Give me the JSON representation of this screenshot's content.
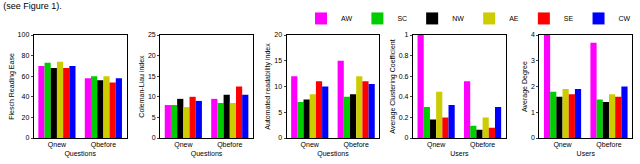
{
  "caption": "(see Figure 1).",
  "chart_data": [
    {
      "type": "bar",
      "y_label": "Flesch Reading Ease",
      "x_label": "Questions",
      "categories": [
        "Qnew",
        "Qbefore"
      ],
      "series": [
        {
          "name": "AW",
          "color": "#ff00ff",
          "values": [
            70,
            58
          ]
        },
        {
          "name": "SC",
          "color": "#00cc00",
          "values": [
            73,
            60
          ]
        },
        {
          "name": "NW",
          "color": "#000000",
          "values": [
            68,
            56
          ]
        },
        {
          "name": "AE",
          "color": "#cccc00",
          "values": [
            74,
            60
          ]
        },
        {
          "name": "SE",
          "color": "#ff0000",
          "values": [
            68,
            54
          ]
        },
        {
          "name": "CW",
          "color": "#0000ff",
          "values": [
            70,
            58
          ]
        }
      ],
      "ylim": [
        0,
        100
      ],
      "yticks": [
        0,
        20,
        40,
        60,
        80,
        100
      ],
      "grid": false
    },
    {
      "type": "bar",
      "y_label": "Coleman-Liau index",
      "x_label": "Questions",
      "categories": [
        "Qnew",
        "Qbefore"
      ],
      "series": [
        {
          "name": "AW",
          "color": "#ff00ff",
          "values": [
            8,
            9.5
          ]
        },
        {
          "name": "SC",
          "color": "#00cc00",
          "values": [
            8,
            8.5
          ]
        },
        {
          "name": "NW",
          "color": "#000000",
          "values": [
            9.5,
            10.5
          ]
        },
        {
          "name": "AE",
          "color": "#cccc00",
          "values": [
            7.5,
            8.5
          ]
        },
        {
          "name": "SE",
          "color": "#ff0000",
          "values": [
            10,
            12.5
          ]
        },
        {
          "name": "CW",
          "color": "#0000ff",
          "values": [
            9,
            10.5
          ]
        }
      ],
      "ylim": [
        0,
        25
      ],
      "yticks": [
        0,
        5,
        10,
        15,
        20,
        25
      ],
      "grid": false
    },
    {
      "type": "bar",
      "y_label": "Automated readability index",
      "x_label": "Questions",
      "categories": [
        "Qnew",
        "Qbefore"
      ],
      "series": [
        {
          "name": "AW",
          "color": "#ff00ff",
          "values": [
            12,
            15
          ]
        },
        {
          "name": "SC",
          "color": "#00cc00",
          "values": [
            7,
            8
          ]
        },
        {
          "name": "NW",
          "color": "#000000",
          "values": [
            7.5,
            8.5
          ]
        },
        {
          "name": "AE",
          "color": "#cccc00",
          "values": [
            8.5,
            12
          ]
        },
        {
          "name": "SE",
          "color": "#ff0000",
          "values": [
            11,
            11
          ]
        },
        {
          "name": "CW",
          "color": "#0000ff",
          "values": [
            10,
            10.5
          ]
        }
      ],
      "ylim": [
        0,
        20
      ],
      "yticks": [
        0,
        5,
        10,
        15,
        20
      ],
      "grid": false
    },
    {
      "type": "bar",
      "y_label": "Average Clustering Coefficient",
      "x_label": "Users",
      "categories": [
        "Qnew",
        "Qbefore"
      ],
      "series": [
        {
          "name": "AW",
          "color": "#ff00ff",
          "values": [
            1.0,
            0.55
          ]
        },
        {
          "name": "SC",
          "color": "#00cc00",
          "values": [
            0.3,
            0.12
          ]
        },
        {
          "name": "NW",
          "color": "#000000",
          "values": [
            0.18,
            0.08
          ]
        },
        {
          "name": "AE",
          "color": "#cccc00",
          "values": [
            0.45,
            0.2
          ]
        },
        {
          "name": "SE",
          "color": "#ff0000",
          "values": [
            0.2,
            0.1
          ]
        },
        {
          "name": "CW",
          "color": "#0000ff",
          "values": [
            0.32,
            0.3
          ]
        }
      ],
      "ylim": [
        0,
        1
      ],
      "yticks": [
        0,
        0.2,
        0.4,
        0.6,
        0.8,
        1
      ],
      "grid": false
    },
    {
      "type": "bar",
      "y_label": "Average Degree",
      "x_label": "Users",
      "categories": [
        "Qnew",
        "Qbefore"
      ],
      "series": [
        {
          "name": "AW",
          "color": "#ff00ff",
          "values": [
            4.0,
            3.7
          ]
        },
        {
          "name": "SC",
          "color": "#00cc00",
          "values": [
            1.8,
            1.5
          ]
        },
        {
          "name": "NW",
          "color": "#000000",
          "values": [
            1.6,
            1.4
          ]
        },
        {
          "name": "AE",
          "color": "#cccc00",
          "values": [
            1.9,
            1.7
          ]
        },
        {
          "name": "SE",
          "color": "#ff0000",
          "values": [
            1.7,
            1.6
          ]
        },
        {
          "name": "CW",
          "color": "#0000ff",
          "values": [
            1.9,
            2.0
          ]
        }
      ],
      "ylim": [
        0,
        4
      ],
      "yticks": [
        0,
        1,
        2,
        3,
        4
      ],
      "grid": false
    }
  ]
}
